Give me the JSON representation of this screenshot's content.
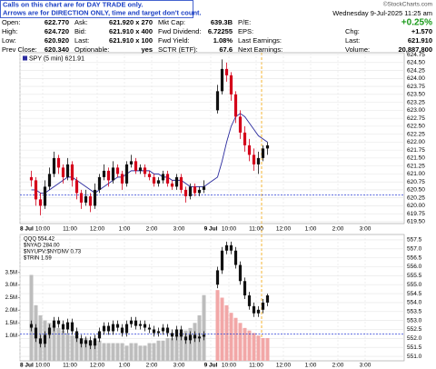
{
  "notes": [
    "Calls on this chart are for DAY TRADE only.",
    "Arrows are for DIRECTION ONLY, time and target don't count."
  ],
  "brand": "©StockCharts.com",
  "date": "Wednesday  9-Jul-2025  11:25 am",
  "quote": {
    "rows": [
      {
        "cells": [
          "Open:",
          "622.770",
          "Ask:",
          "621.920 x 270",
          "Mkt Cap:",
          "639.3B",
          "P/E:"
        ],
        "right": [
          "+0.25%"
        ]
      },
      {
        "cells": [
          "High:",
          "624.720",
          "Bid:",
          "621.910 x 400",
          "Fwd Dividend:",
          "6.72255",
          "EPS:"
        ],
        "right": [
          "Chg:",
          "+1.570"
        ]
      },
      {
        "cells": [
          "Low:",
          "620.920",
          "Last:",
          "621.910 x 100",
          "Fwd Yield:",
          "1.08%",
          "Last Earnings:"
        ],
        "right": [
          "Last:",
          "621.910"
        ]
      },
      {
        "cells": [
          "Prev Close:",
          "620.340",
          "Optionable:",
          "yes",
          "SCTR (ETF):",
          "67.6",
          "Next Earnings:"
        ],
        "right": [
          "Volume:",
          "20,887,800"
        ]
      }
    ]
  },
  "xtick_labels": [
    "8 Jul",
    "10:00",
    "11:00",
    "12:00",
    "1:00",
    "2:00",
    "3:00",
    "9 Jul",
    "10:00",
    "11:00",
    "12:00",
    "1:00",
    "2:00",
    "3:00"
  ],
  "chart_data": [
    {
      "type": "candlestick",
      "legend": "SPY (5 min) 621.91",
      "up_color": "#111111",
      "down_color": "#d4001a",
      "ma_color": "#2b2b9e",
      "ref_color": "#2b3fd6",
      "ylim": [
        619.44,
        624.81
      ],
      "yticks": [
        {
          "value": 619.5,
          "label": "619.50"
        },
        {
          "value": 619.75,
          "label": "619.75"
        },
        {
          "value": 620,
          "label": "620.00"
        },
        {
          "value": 620.25,
          "label": "620.25"
        },
        {
          "value": 620.5,
          "label": "620.50"
        },
        {
          "value": 620.75,
          "label": "620.75"
        },
        {
          "value": 621,
          "label": "621.00"
        },
        {
          "value": 621.25,
          "label": "621.25"
        },
        {
          "value": 621.5,
          "label": "621.50"
        },
        {
          "value": 621.75,
          "label": "621.75"
        },
        {
          "value": 622,
          "label": "622.00"
        },
        {
          "value": 622.25,
          "label": "622.25"
        },
        {
          "value": 622.5,
          "label": "622.50"
        },
        {
          "value": 622.75,
          "label": "622.75"
        },
        {
          "value": 623,
          "label": "623.00"
        },
        {
          "value": 623.25,
          "label": "623.25"
        },
        {
          "value": 623.5,
          "label": "623.50"
        },
        {
          "value": 623.75,
          "label": "623.75"
        },
        {
          "value": 624,
          "label": "624.00"
        },
        {
          "value": 624.25,
          "label": "624.25"
        },
        {
          "value": 624.5,
          "label": "624.50"
        },
        {
          "value": 624.75,
          "label": "624.75"
        }
      ],
      "ref_line": 620.34,
      "ohlc": [
        [
          620.9,
          621.1,
          620.6,
          620.8
        ],
        [
          620.8,
          620.9,
          620.0,
          620.2
        ],
        [
          620.2,
          620.4,
          619.7,
          620.0
        ],
        [
          620.0,
          620.8,
          619.9,
          620.6
        ],
        [
          620.6,
          621.2,
          620.5,
          621.0
        ],
        [
          621.0,
          621.7,
          620.9,
          621.5
        ],
        [
          621.5,
          621.6,
          621.0,
          621.2
        ],
        [
          621.2,
          621.3,
          620.7,
          620.9
        ],
        [
          620.9,
          621.5,
          620.8,
          621.3
        ],
        [
          621.3,
          621.4,
          620.6,
          620.8
        ],
        [
          620.8,
          620.9,
          620.2,
          620.4
        ],
        [
          620.4,
          620.5,
          619.9,
          620.1
        ],
        [
          620.1,
          620.5,
          620.0,
          620.3
        ],
        [
          620.3,
          620.4,
          619.8,
          620.0
        ],
        [
          620.0,
          620.7,
          619.9,
          620.5
        ],
        [
          620.5,
          621.0,
          620.4,
          620.9
        ],
        [
          620.9,
          621.3,
          620.8,
          621.1
        ],
        [
          621.1,
          621.2,
          620.6,
          620.8
        ],
        [
          620.8,
          621.4,
          620.7,
          621.2
        ],
        [
          621.2,
          621.3,
          620.9,
          621.0
        ],
        [
          621.0,
          621.1,
          620.5,
          620.7
        ],
        [
          620.7,
          621.4,
          620.6,
          621.3
        ],
        [
          621.3,
          621.6,
          621.2,
          621.4
        ],
        [
          621.4,
          621.5,
          621.0,
          621.1
        ],
        [
          621.1,
          621.3,
          621.0,
          621.2
        ],
        [
          621.2,
          621.3,
          620.9,
          621.0
        ],
        [
          621.0,
          621.1,
          620.8,
          620.9
        ],
        [
          620.9,
          621.0,
          620.6,
          620.7
        ],
        [
          620.7,
          620.9,
          620.6,
          620.8
        ],
        [
          620.8,
          621.1,
          620.7,
          621.0
        ],
        [
          621.0,
          621.1,
          620.6,
          620.7
        ],
        [
          620.7,
          620.8,
          620.5,
          620.6
        ],
        [
          620.6,
          621.0,
          620.5,
          620.9
        ],
        [
          620.9,
          621.0,
          620.4,
          620.5
        ],
        [
          620.5,
          620.6,
          620.1,
          620.3
        ],
        [
          620.3,
          620.7,
          620.2,
          620.6
        ],
        [
          620.6,
          620.7,
          620.3,
          620.4
        ],
        [
          620.4,
          620.6,
          620.3,
          620.5
        ],
        [
          620.5,
          620.8,
          620.4,
          620.6
        ],
        [
          623.0,
          623.8,
          622.9,
          623.6
        ],
        [
          623.6,
          624.6,
          623.5,
          624.3
        ],
        [
          624.3,
          624.5,
          623.9,
          624.1
        ],
        [
          624.1,
          624.2,
          623.3,
          623.5
        ],
        [
          623.5,
          623.6,
          622.6,
          622.8
        ],
        [
          622.8,
          623.0,
          622.1,
          622.3
        ],
        [
          622.3,
          622.5,
          621.7,
          621.9
        ],
        [
          621.9,
          622.1,
          621.4,
          621.6
        ],
        [
          621.6,
          621.8,
          621.1,
          621.3
        ],
        [
          621.3,
          621.7,
          621.0,
          621.5
        ],
        [
          621.5,
          621.9,
          621.4,
          621.8
        ],
        [
          621.8,
          622.0,
          621.6,
          621.9
        ]
      ],
      "ma": [
        620.5,
        620.5,
        620.4,
        620.4,
        620.5,
        620.6,
        620.7,
        620.8,
        620.9,
        620.9,
        620.8,
        620.7,
        620.6,
        620.5,
        620.4,
        620.5,
        620.6,
        620.7,
        620.8,
        620.9,
        620.9,
        621.0,
        621.1,
        621.1,
        621.1,
        621.1,
        621.1,
        621.0,
        621.0,
        620.9,
        620.9,
        620.8,
        620.8,
        620.8,
        620.7,
        620.6,
        620.6,
        620.6,
        620.6,
        620.9,
        621.4,
        622.0,
        622.5,
        622.8,
        622.9,
        622.8,
        622.6,
        622.4,
        622.2,
        622.1,
        622.0
      ]
    },
    {
      "type": "candlestick",
      "legends": [
        "QQQ 554.42",
        "$NYAD 284.00",
        "$NYUPV:$NYDNV 0.73",
        "$TRIN 1.59"
      ],
      "up_color": "#111111",
      "down_color": "#111111",
      "volume_color": "#bdbdbd",
      "ref_color": "#2b3fd6",
      "ylim": [
        550.75,
        557.8
      ],
      "yticks": [
        {
          "value": 551,
          "label": "551.0"
        },
        {
          "value": 551.5,
          "label": "551.5"
        },
        {
          "value": 552,
          "label": "552.0"
        },
        {
          "value": 552.5,
          "label": "552.5"
        },
        {
          "value": 553,
          "label": "553.0"
        },
        {
          "value": 553.5,
          "label": "553.5"
        },
        {
          "value": 554,
          "label": "554.0"
        },
        {
          "value": 554.5,
          "label": "554.5"
        },
        {
          "value": 555,
          "label": "555.0"
        },
        {
          "value": 555.5,
          "label": "555.5"
        },
        {
          "value": 556,
          "label": "556.0"
        },
        {
          "value": 556.5,
          "label": "556.5"
        },
        {
          "value": 557,
          "label": "557.0"
        },
        {
          "value": 557.5,
          "label": "557.5"
        }
      ],
      "y2lim": [
        0,
        5
      ],
      "y2ticks": [
        {
          "value": 1.0,
          "label": "1.0M"
        },
        {
          "value": 1.5,
          "label": "1.5M"
        },
        {
          "value": 2.0,
          "label": "2.0M"
        },
        {
          "value": 2.5,
          "label": "2.5M"
        },
        {
          "value": 3.0,
          "label": "3.0M"
        },
        {
          "value": 3.5,
          "label": "3.5M"
        }
      ],
      "ref_line": 552.24,
      "ohlc": [
        [
          552.8,
          553.0,
          552.4,
          552.6
        ],
        [
          552.6,
          552.8,
          551.8,
          552.0
        ],
        [
          552.0,
          552.2,
          551.5,
          551.7
        ],
        [
          551.7,
          552.4,
          551.5,
          552.2
        ],
        [
          552.2,
          552.8,
          552.0,
          552.6
        ],
        [
          552.6,
          553.2,
          552.4,
          553.0
        ],
        [
          553.0,
          553.2,
          552.6,
          552.8
        ],
        [
          552.8,
          553.0,
          552.3,
          552.5
        ],
        [
          552.5,
          553.1,
          552.3,
          552.9
        ],
        [
          552.9,
          553.1,
          552.2,
          552.4
        ],
        [
          552.4,
          552.6,
          551.8,
          552.0
        ],
        [
          552.0,
          552.2,
          551.5,
          551.7
        ],
        [
          551.7,
          552.1,
          551.5,
          551.9
        ],
        [
          551.9,
          552.1,
          551.4,
          551.6
        ],
        [
          551.6,
          552.2,
          551.4,
          552.0
        ],
        [
          552.0,
          552.6,
          551.8,
          552.4
        ],
        [
          552.4,
          552.9,
          552.2,
          552.7
        ],
        [
          552.7,
          552.9,
          552.2,
          552.4
        ],
        [
          552.4,
          553.0,
          552.2,
          552.8
        ],
        [
          552.8,
          553.0,
          552.4,
          552.6
        ],
        [
          552.6,
          552.8,
          552.1,
          552.3
        ],
        [
          552.3,
          553.0,
          552.1,
          552.8
        ],
        [
          552.8,
          553.2,
          552.6,
          553.0
        ],
        [
          553.0,
          553.2,
          552.5,
          552.7
        ],
        [
          552.7,
          553.0,
          552.5,
          552.8
        ],
        [
          552.8,
          553.0,
          552.4,
          552.6
        ],
        [
          552.6,
          552.8,
          552.3,
          552.5
        ],
        [
          552.5,
          552.7,
          552.1,
          552.3
        ],
        [
          552.3,
          552.6,
          552.1,
          552.4
        ],
        [
          552.4,
          552.8,
          552.2,
          552.6
        ],
        [
          552.6,
          552.8,
          552.1,
          552.3
        ],
        [
          552.3,
          552.5,
          551.9,
          552.1
        ],
        [
          552.1,
          552.7,
          551.9,
          552.5
        ],
        [
          552.5,
          552.7,
          551.9,
          552.1
        ],
        [
          552.1,
          552.3,
          551.7,
          551.9
        ],
        [
          551.9,
          552.4,
          551.7,
          552.2
        ],
        [
          552.2,
          552.4,
          551.8,
          552.0
        ],
        [
          552.0,
          552.3,
          551.8,
          552.1
        ],
        [
          552.1,
          552.4,
          551.9,
          552.2
        ],
        [
          555.0,
          556.0,
          554.8,
          555.8
        ],
        [
          555.8,
          557.1,
          555.6,
          556.9
        ],
        [
          556.9,
          557.4,
          556.7,
          557.2
        ],
        [
          557.2,
          557.4,
          556.7,
          556.9
        ],
        [
          556.9,
          557.1,
          555.9,
          556.1
        ],
        [
          556.1,
          556.3,
          555.0,
          555.2
        ],
        [
          555.2,
          555.4,
          554.2,
          554.4
        ],
        [
          554.4,
          554.6,
          553.6,
          553.8
        ],
        [
          553.8,
          554.0,
          553.2,
          553.4
        ],
        [
          553.4,
          553.8,
          553.2,
          553.6
        ],
        [
          553.6,
          554.2,
          553.4,
          554.0
        ],
        [
          554.0,
          554.5,
          553.8,
          554.4
        ]
      ],
      "volume": [
        3.4,
        2.2,
        1.8,
        1.6,
        1.5,
        1.4,
        1.3,
        1.2,
        1.1,
        1.0,
        1.0,
        0.9,
        0.9,
        0.8,
        0.8,
        0.8,
        0.7,
        0.7,
        0.7,
        0.7,
        0.7,
        0.6,
        0.7,
        0.7,
        0.6,
        0.6,
        0.7,
        0.7,
        0.8,
        0.8,
        0.9,
        0.9,
        1.0,
        1.1,
        1.2,
        1.3,
        1.5,
        1.8,
        2.6,
        2.8,
        2.5,
        2.2,
        1.9,
        1.7,
        1.5,
        1.3,
        1.2,
        1.1,
        1.0,
        0.9,
        0.9
      ]
    }
  ]
}
